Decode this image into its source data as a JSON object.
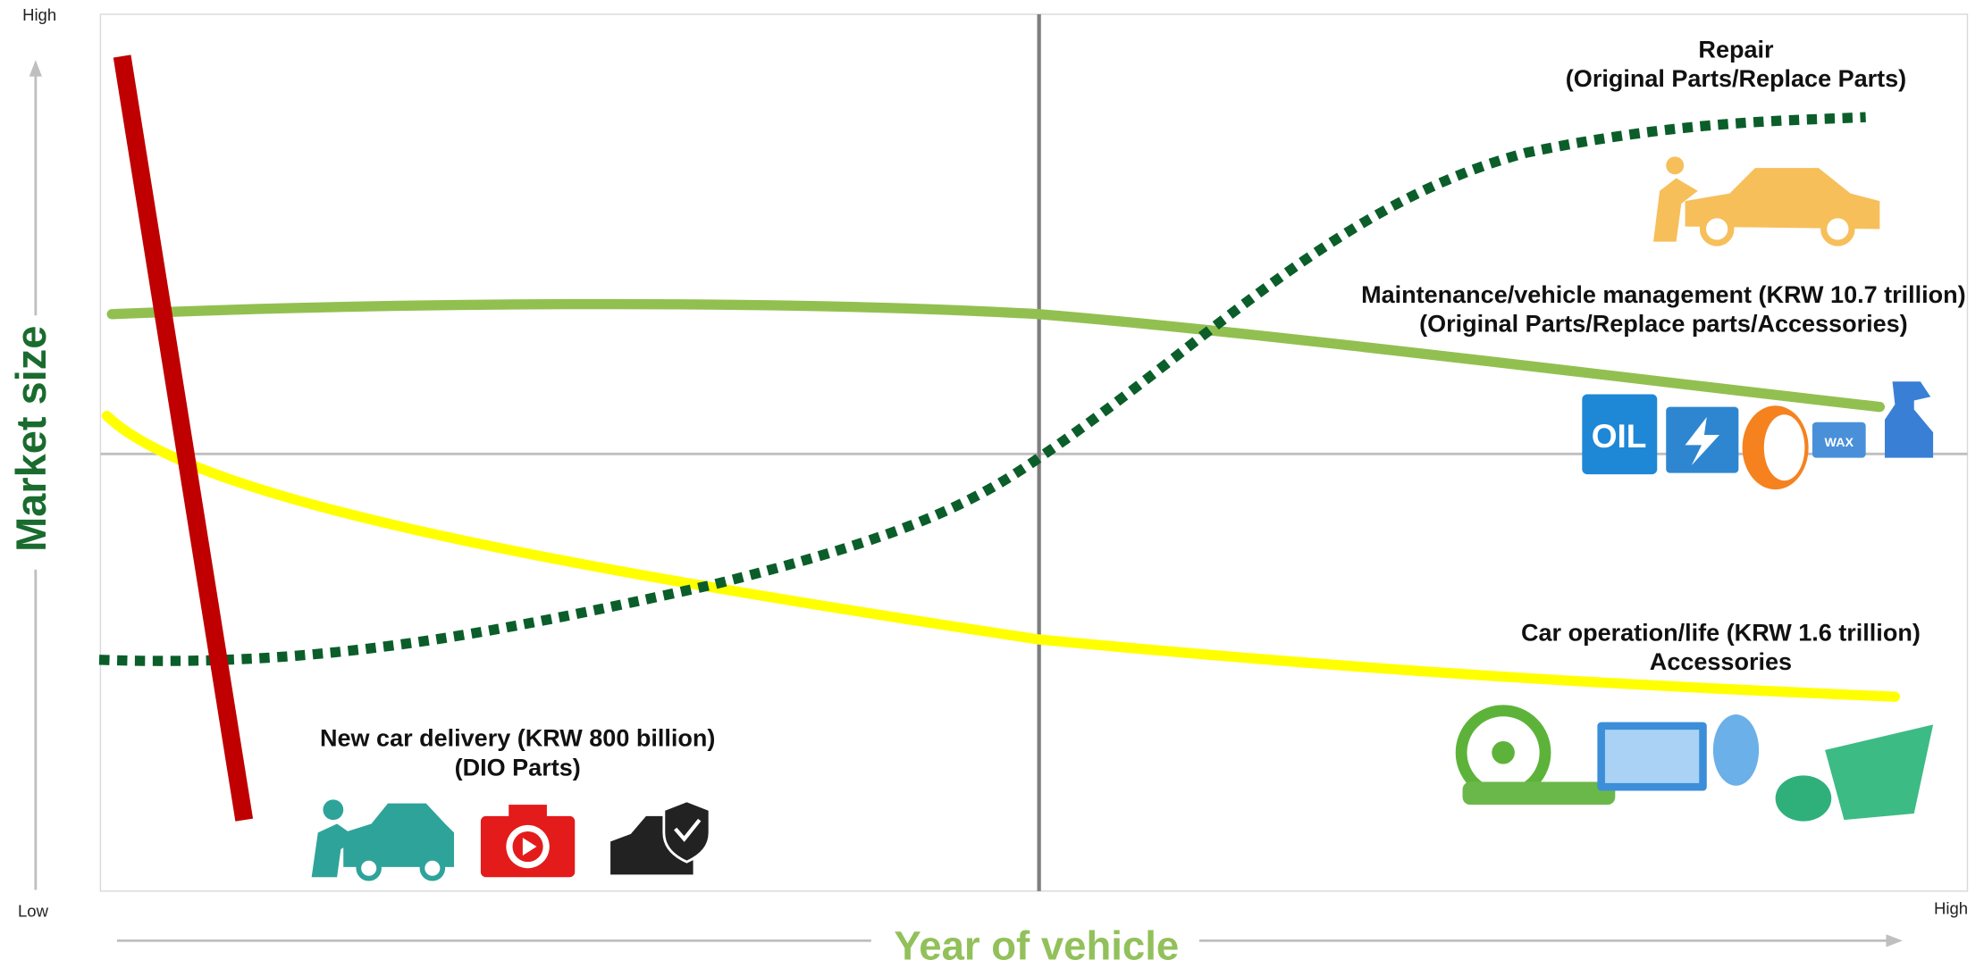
{
  "axes": {
    "y_high": "High",
    "y_low": "Low",
    "x_high": "High",
    "y_title": "Market size",
    "x_title": "Year of vehicle"
  },
  "annotations": [
    {
      "lines": [
        "Repair",
        "(Original Parts/Replace Parts)"
      ]
    },
    {
      "lines": [
        "Maintenance/vehicle management (KRW 10.7 trillion)",
        "(Original Parts/Replace parts/Accessories)"
      ]
    },
    {
      "lines": [
        "Car operation/life (KRW 1.6 trillion)",
        "Accessories"
      ]
    },
    {
      "lines": [
        "New car delivery (KRW 800 billion)",
        "(DIO Parts)"
      ]
    }
  ],
  "icons": {
    "oil": "OIL",
    "wax": "WAX"
  }
}
